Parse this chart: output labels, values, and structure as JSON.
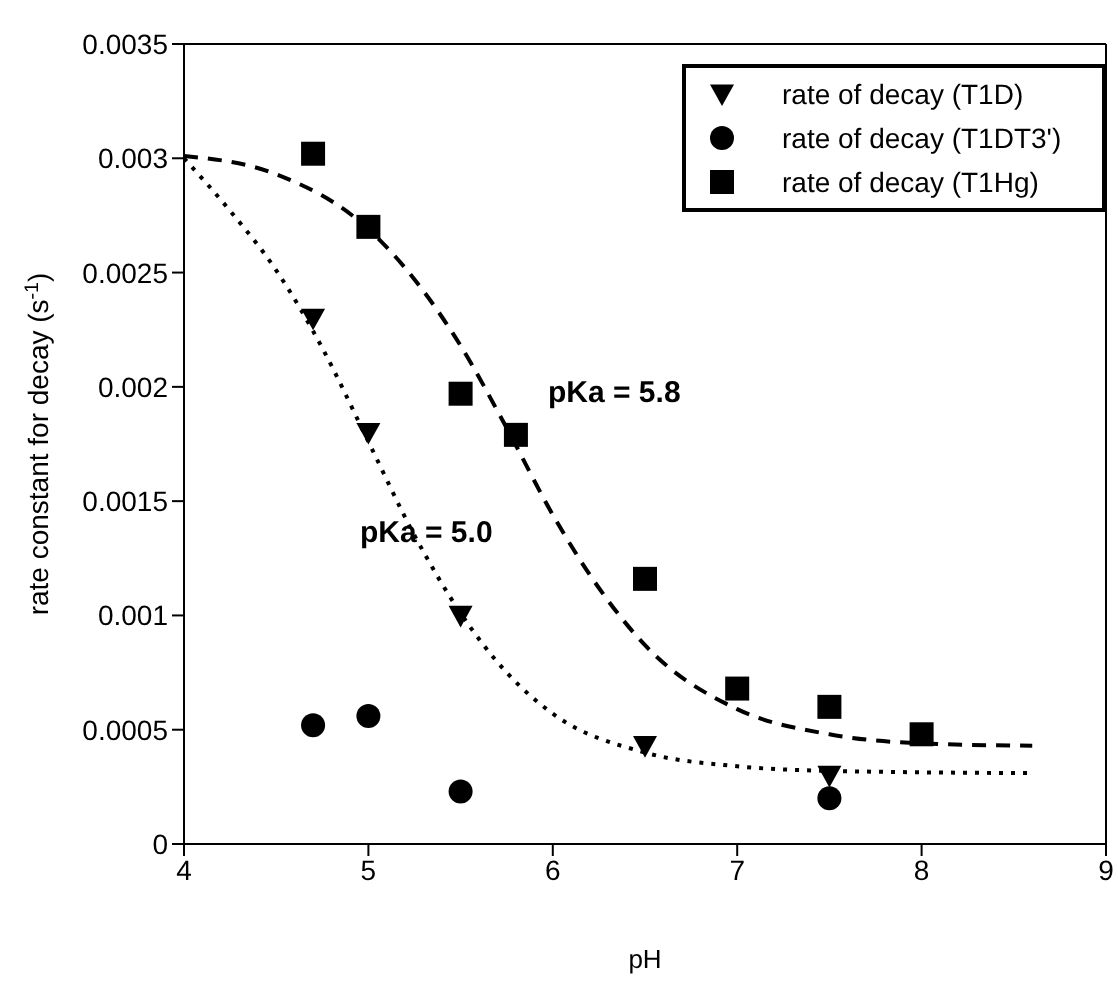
{
  "chart_data": {
    "type": "scatter",
    "xlabel": "pH",
    "ylabel": "rate constant for decay (s$^{-1}$)",
    "xlim": [
      4,
      9
    ],
    "xticks": [
      4,
      5,
      6,
      7,
      8,
      9
    ],
    "ylim": [
      0,
      0.0035
    ],
    "yticks": [
      0,
      0.0005,
      0.001,
      0.0015,
      0.002,
      0.0025,
      0.003,
      0.0035
    ],
    "grid": false,
    "legend": "top right",
    "series": [
      {
        "name": "rate of decay (T1D)",
        "marker": "triangle",
        "color": "#000000",
        "x": [
          4.7,
          5.0,
          5.5,
          6.5,
          7.5
        ],
        "values": [
          0.0023,
          0.0018,
          0.001,
          0.00043,
          0.0003
        ]
      },
      {
        "name": "rate of decay (T1DT3')",
        "marker": "circle",
        "color": "#000000",
        "x": [
          4.7,
          5.0,
          5.5,
          7.5
        ],
        "values": [
          0.00052,
          0.00056,
          0.00023,
          0.0002
        ]
      },
      {
        "name": "rate of decay (T1Hg)",
        "marker": "square",
        "color": "#000000",
        "x": [
          4.7,
          5.0,
          5.5,
          5.8,
          6.5,
          7.0,
          7.5,
          8.0
        ],
        "values": [
          0.00302,
          0.0027,
          0.00197,
          0.00179,
          0.00116,
          0.00068,
          0.0006,
          0.00048
        ]
      },
      {
        "type": "line",
        "marker": "none",
        "line_style": "dotted",
        "color": "#000000",
        "x": [
          4,
          4.25,
          4.5,
          4.75,
          5,
          5.25,
          5.5,
          5.75,
          6,
          6.5,
          7,
          7.5,
          8.6
        ],
        "values": [
          0.003,
          0.00277,
          0.00251,
          0.00217,
          0.00176,
          0.00135,
          0.00101,
          0.00075,
          0.00057,
          0.0004,
          0.00034,
          0.00032,
          0.00031
        ]
      },
      {
        "type": "line",
        "marker": "none",
        "line_style": "dashed",
        "color": "#000000",
        "x": [
          4,
          4.5,
          5,
          5.25,
          5.5,
          5.75,
          6,
          6.25,
          6.5,
          7,
          7.5,
          8,
          8.6
        ],
        "values": [
          0.00301,
          0.00293,
          0.00269,
          0.00247,
          0.00218,
          0.00182,
          0.00144,
          0.00112,
          0.00087,
          0.00059,
          0.00048,
          0.00044,
          0.00043
        ]
      }
    ],
    "annotations": [
      "pKa = 5.8",
      "pKa = 5.0"
    ]
  }
}
